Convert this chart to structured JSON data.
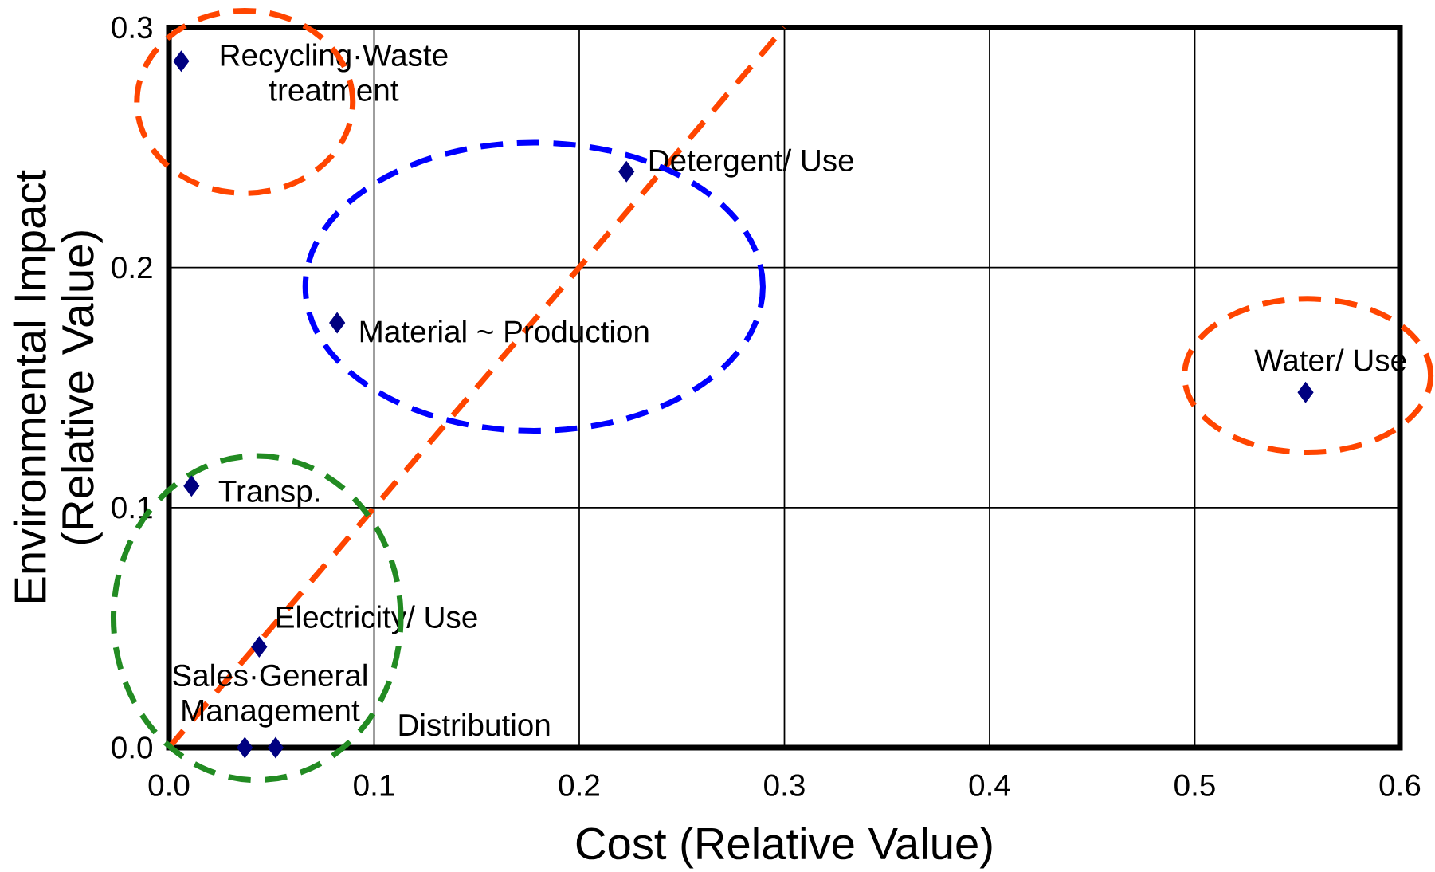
{
  "chart_data": {
    "type": "scatter",
    "xlabel": "Cost   (Relative Value)",
    "ylabel": "Environmental Impact (Relative Value)",
    "xlim": [
      0,
      0.6
    ],
    "ylim": [
      0,
      0.3
    ],
    "xticks": [
      {
        "value": 0,
        "label": "0.0"
      },
      0.1,
      0.2,
      0.3,
      0.4,
      0.5,
      0.6
    ],
    "yticks": [
      {
        "value": 0,
        "label": "0.0"
      },
      0.1,
      0.2,
      0.3
    ],
    "grid": true,
    "marker": "diamond",
    "series": [
      {
        "color": "#000080",
        "x": [
          0.006,
          0.223,
          0.082,
          0.554,
          0.011,
          0.044,
          0.037,
          0.052
        ],
        "values": [
          0.286,
          0.24,
          0.177,
          0.148,
          0.109,
          0.042,
          0,
          0
        ]
      },
      {
        "type": "line",
        "color": "#ff4500",
        "line_style": "dashed",
        "marker": "none",
        "x": [
          0,
          0.3
        ],
        "values": [
          0,
          0.3
        ]
      }
    ],
    "annotations": [
      {
        "text": "Recycling·Waste treatment",
        "x": 0.006,
        "y": 0.286
      },
      {
        "text": "Detergent/ Use",
        "x": 0.223,
        "y": 0.24
      },
      {
        "text": "Material ~ Production",
        "x": 0.082,
        "y": 0.177
      },
      {
        "text": "Water/ Use",
        "x": 0.554,
        "y": 0.148
      },
      {
        "text": "Transp.",
        "x": 0.011,
        "y": 0.109
      },
      {
        "text": "Electricity/ Use",
        "x": 0.044,
        "y": 0.042
      },
      {
        "text": "Sales·General Management",
        "x": 0.037,
        "y": 0
      },
      "Distribution"
    ]
  }
}
